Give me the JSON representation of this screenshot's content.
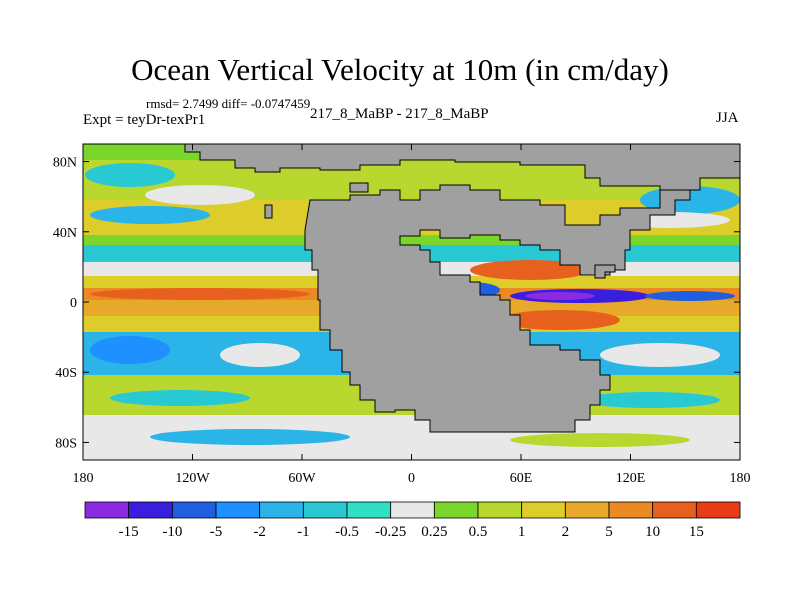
{
  "chart_data": {
    "type": "heatmap",
    "title": "Ocean Vertical Velocity at 10m (in cm/day)",
    "stats_text": "rmsd= 2.7499 diff= -0.0747459",
    "experiment_text": "Expt = teyDr-texPr1",
    "subtitle": "217_8_MaBP - 217_8_MaBP",
    "season": "JJA",
    "x_axis": {
      "range": [
        -180,
        180
      ],
      "ticks": [
        "180",
        "120W",
        "60W",
        "0",
        "60E",
        "120E",
        "180"
      ],
      "tick_values": [
        -180,
        -120,
        -60,
        0,
        60,
        120,
        180
      ]
    },
    "y_axis": {
      "range": [
        -90,
        90
      ],
      "ticks": [
        "80N",
        "40N",
        "0",
        "40S",
        "80S"
      ],
      "tick_values": [
        80,
        40,
        0,
        -40,
        -80
      ]
    },
    "colorbar": {
      "colors": [
        "#8a2be2",
        "#3a1ee0",
        "#1e5ee0",
        "#1e90ff",
        "#2ab4e8",
        "#29c9d4",
        "#30dfc4",
        "#e8e8e8",
        "#7ad62a",
        "#b8d830",
        "#dccd2a",
        "#e8a82a",
        "#eb8a22",
        "#e8601e",
        "#e83c18"
      ],
      "labels": [
        "-15",
        "-10",
        "-5",
        "-2",
        "-1",
        "-0.5",
        "-0.25",
        "0.25",
        "0.5",
        "1",
        "2",
        "5",
        "10",
        "15"
      ]
    },
    "land_color": "#a0a0a0"
  }
}
